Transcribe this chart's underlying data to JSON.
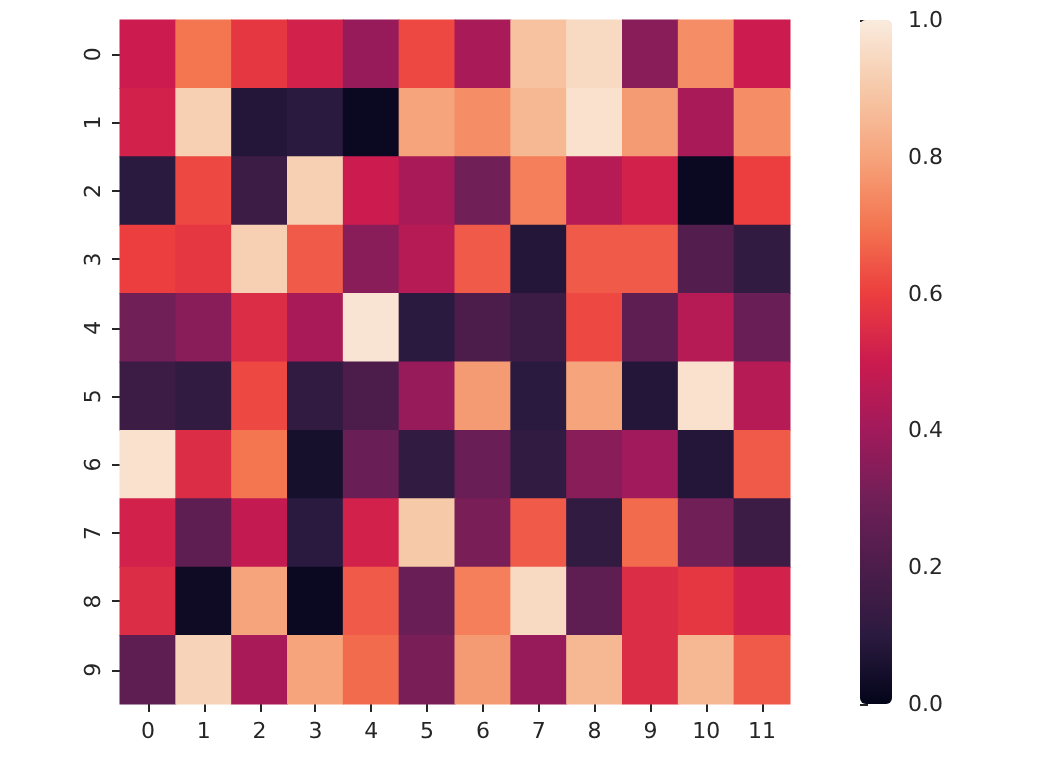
{
  "chart_data": {
    "type": "heatmap",
    "categories": [
      "0",
      "1",
      "2",
      "3",
      "4",
      "5",
      "6",
      "7",
      "8",
      "9",
      "10",
      "11"
    ],
    "y_categories": [
      "0",
      "1",
      "2",
      "3",
      "4",
      "5",
      "6",
      "7",
      "8",
      "9"
    ],
    "cells": [
      [
        0.5,
        0.7,
        0.58,
        0.52,
        0.38,
        0.62,
        0.42,
        0.88,
        0.95,
        0.35,
        0.75,
        0.5
      ],
      [
        0.52,
        0.92,
        0.08,
        0.1,
        0.02,
        0.8,
        0.75,
        0.85,
        0.97,
        0.78,
        0.42,
        0.75
      ],
      [
        0.1,
        0.62,
        0.15,
        0.92,
        0.5,
        0.42,
        0.3,
        0.72,
        0.45,
        0.52,
        0.02,
        0.6
      ],
      [
        0.6,
        0.58,
        0.92,
        0.65,
        0.35,
        0.45,
        0.65,
        0.08,
        0.65,
        0.65,
        0.22,
        0.12
      ],
      [
        0.3,
        0.35,
        0.55,
        0.42,
        0.98,
        0.1,
        0.2,
        0.15,
        0.62,
        0.25,
        0.45,
        0.28
      ],
      [
        0.15,
        0.12,
        0.62,
        0.12,
        0.2,
        0.38,
        0.78,
        0.1,
        0.8,
        0.08,
        0.97,
        0.45
      ],
      [
        0.97,
        0.55,
        0.7,
        0.05,
        0.28,
        0.12,
        0.28,
        0.12,
        0.35,
        0.4,
        0.08,
        0.65
      ],
      [
        0.52,
        0.25,
        0.48,
        0.1,
        0.52,
        0.9,
        0.32,
        0.65,
        0.12,
        0.68,
        0.3,
        0.15
      ],
      [
        0.55,
        0.03,
        0.8,
        0.02,
        0.65,
        0.28,
        0.72,
        0.95,
        0.25,
        0.55,
        0.58,
        0.52
      ],
      [
        0.25,
        0.93,
        0.42,
        0.8,
        0.68,
        0.32,
        0.78,
        0.38,
        0.85,
        0.55,
        0.85,
        0.65
      ]
    ],
    "clim": [
      0,
      1
    ],
    "cticks": [
      {
        "value": 0,
        "label": "0.0"
      },
      {
        "value": 0.2,
        "label": "0.2"
      },
      {
        "value": 0.4,
        "label": "0.4"
      },
      {
        "value": 0.6,
        "label": "0.6"
      },
      {
        "value": 0.8,
        "label": "0.8"
      },
      {
        "value": 1,
        "label": "1.0"
      }
    ]
  }
}
